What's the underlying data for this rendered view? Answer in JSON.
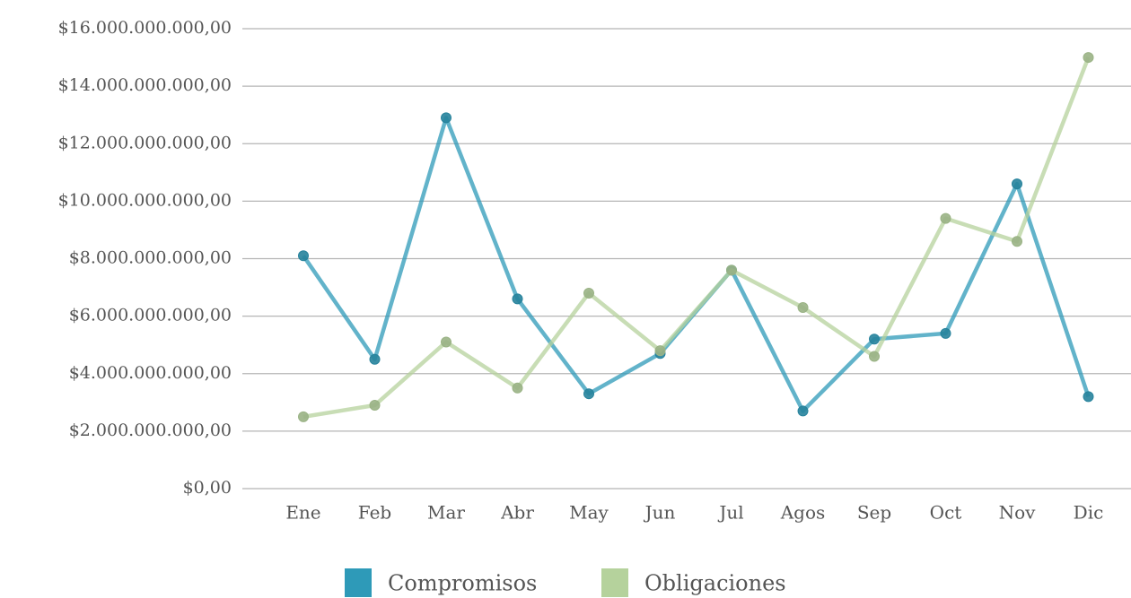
{
  "chart_data": {
    "type": "line",
    "categories": [
      "Ene",
      "Feb",
      "Mar",
      "Abr",
      "May",
      "Jun",
      "Jul",
      "Agos",
      "Sep",
      "Oct",
      "Nov",
      "Dic"
    ],
    "series": [
      {
        "name": "Compromisos",
        "color": "#2e9ab8",
        "values": [
          8100000000,
          4500000000,
          12900000000,
          6600000000,
          3300000000,
          4700000000,
          7600000000,
          2700000000,
          5200000000,
          5400000000,
          10600000000,
          3200000000
        ]
      },
      {
        "name": "Obligaciones",
        "color": "#b5d29c",
        "values": [
          2500000000,
          2900000000,
          5100000000,
          3500000000,
          6800000000,
          4800000000,
          7600000000,
          6300000000,
          4600000000,
          9400000000,
          8600000000,
          15000000000
        ]
      }
    ],
    "ylim": [
      0,
      16000000000
    ],
    "yticks": [
      {
        "value": 0,
        "label": "$0,00"
      },
      {
        "value": 2000000000,
        "label": "$2.000.000.000,00"
      },
      {
        "value": 4000000000,
        "label": "$4.000.000.000,00"
      },
      {
        "value": 6000000000,
        "label": "$6.000.000.000,00"
      },
      {
        "value": 8000000000,
        "label": "$8.000.000.000,00"
      },
      {
        "value": 10000000000,
        "label": "$10.000.000.000,00"
      },
      {
        "value": 12000000000,
        "label": "$12.000.000.000,00"
      },
      {
        "value": 14000000000,
        "label": "$14.000.000.000,00"
      },
      {
        "value": 16000000000,
        "label": "$16.000.000.000,00"
      }
    ],
    "grid": true
  }
}
